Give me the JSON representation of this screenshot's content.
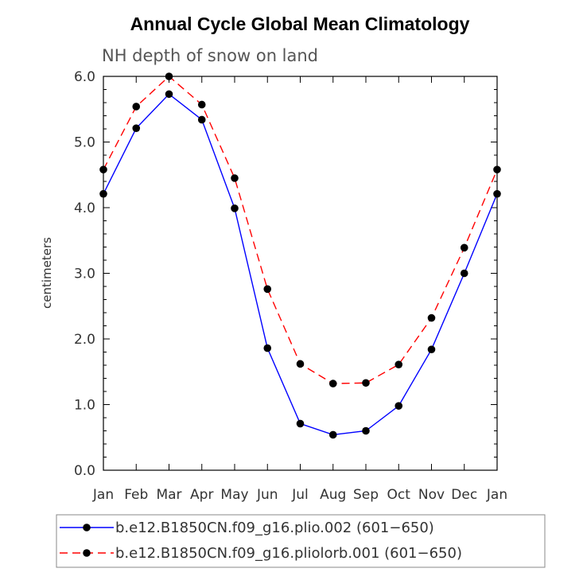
{
  "chart_data": {
    "type": "line",
    "title": "Annual Cycle Global Mean Climatology",
    "subtitle": "NH depth of snow on land",
    "xlabel": "",
    "ylabel": "centimeters",
    "categories": [
      "Jan",
      "Feb",
      "Mar",
      "Apr",
      "May",
      "Jun",
      "Jul",
      "Aug",
      "Sep",
      "Oct",
      "Nov",
      "Dec",
      "Jan"
    ],
    "ylim": [
      0,
      6
    ],
    "yticks": [
      "0.0",
      "1.0",
      "2.0",
      "3.0",
      "4.0",
      "5.0",
      "6.0"
    ],
    "series": [
      {
        "name": "b.e12.B1850CN.f09_g16.plio.002 (601−650)",
        "color": "#0000ff",
        "dash": "solid",
        "values": [
          4.21,
          5.21,
          5.73,
          5.34,
          3.99,
          1.86,
          0.71,
          0.54,
          0.6,
          0.98,
          1.84,
          3.0,
          4.21
        ]
      },
      {
        "name": "b.e12.B1850CN.f09_g16.pliolorb.001 (601−650)",
        "color": "#ff0000",
        "dash": "dashed",
        "values": [
          4.58,
          5.54,
          6.0,
          5.57,
          4.45,
          2.76,
          1.62,
          1.32,
          1.33,
          1.61,
          2.32,
          3.39,
          4.58
        ]
      }
    ]
  }
}
